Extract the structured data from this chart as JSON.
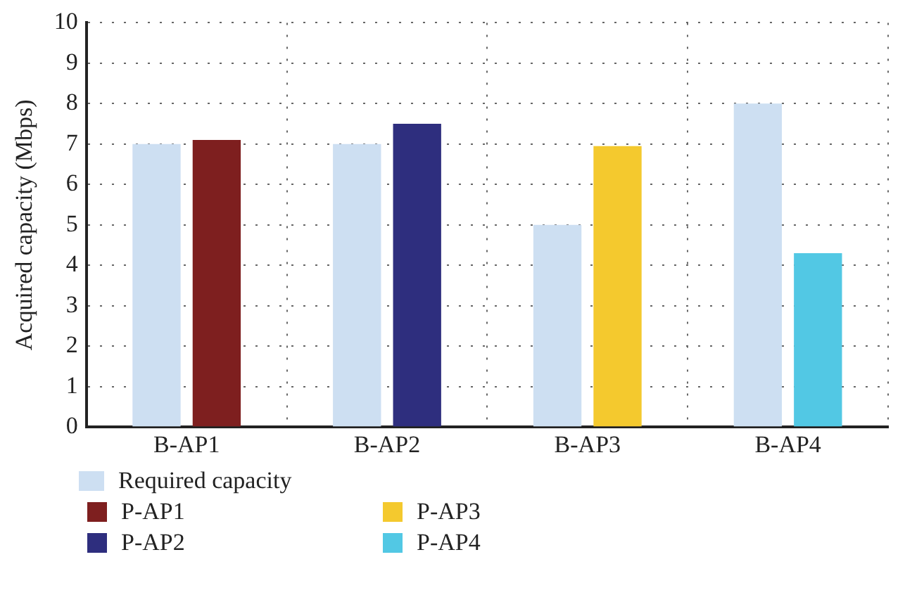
{
  "chart_data": {
    "type": "bar",
    "ylabel": "Acquired capacity (Mbps)",
    "categories": [
      "B-AP1",
      "B-AP2",
      "B-AP3",
      "B-AP4"
    ],
    "series": [
      {
        "name": "Required capacity",
        "color": "#cddff2",
        "values": [
          7,
          7,
          5,
          8
        ]
      },
      {
        "name": "P-AP1",
        "color": "#7e1f1f",
        "values": [
          7.1,
          null,
          null,
          null
        ]
      },
      {
        "name": "P-AP2",
        "color": "#2e2e7e",
        "values": [
          null,
          7.5,
          null,
          null
        ]
      },
      {
        "name": "P-AP3",
        "color": "#f4c92e",
        "values": [
          null,
          null,
          6.95,
          null
        ]
      },
      {
        "name": "P-AP4",
        "color": "#52c8e4",
        "values": [
          null,
          null,
          null,
          4.3
        ]
      }
    ],
    "ylim": [
      0,
      10
    ],
    "yticks": [
      0,
      1,
      2,
      3,
      4,
      5,
      6,
      7,
      8,
      9,
      10
    ],
    "grid": true,
    "legend": "bottom left"
  }
}
